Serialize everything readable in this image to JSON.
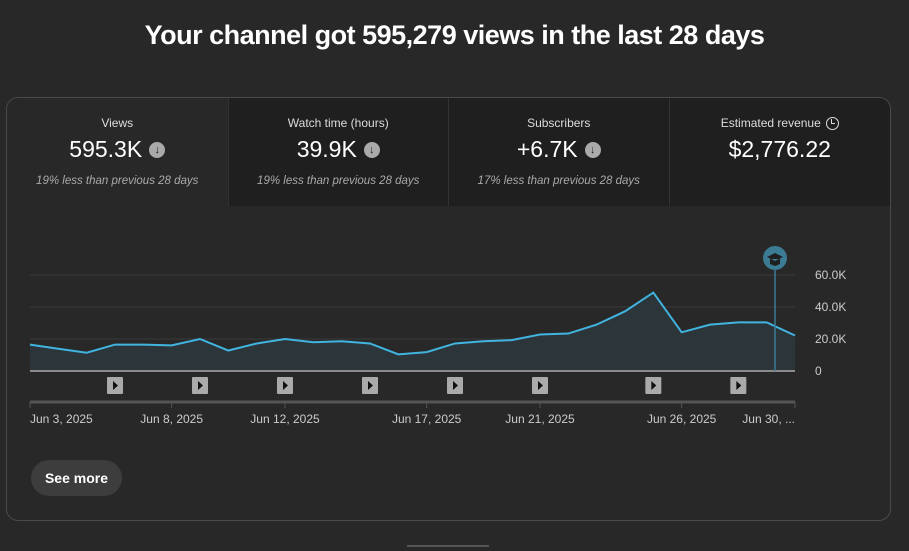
{
  "headline": "Your channel got 595,279 views in the last 28 days",
  "metrics": [
    {
      "label": "Views",
      "value": "595.3K",
      "trend": "down",
      "note": "19% less than previous 28 days"
    },
    {
      "label": "Watch time (hours)",
      "value": "39.9K",
      "trend": "down",
      "note": "19% less than previous 28 days"
    },
    {
      "label": "Subscribers",
      "value": "+6.7K",
      "trend": "down",
      "note": "17% less than previous 28 days"
    },
    {
      "label": "Estimated revenue",
      "value": "$2,776.22",
      "icon": "clock-icon"
    }
  ],
  "see_more": "See more",
  "chart_data": {
    "type": "area",
    "series": [
      {
        "values": [
          16.5,
          13.9,
          11.4,
          16.5,
          16.5,
          16,
          20,
          12.8,
          17.2,
          20,
          18,
          18.6,
          17.2,
          10.4,
          11.8,
          17.2,
          18.6,
          19.3,
          22.8,
          23.4,
          29,
          37.3,
          49,
          24.2,
          29,
          30.4,
          30.4,
          22.2
        ]
      }
    ],
    "ylim": [
      0,
      60
    ],
    "yticks": [
      "0",
      "20.0K",
      "40.0K",
      "60.0K"
    ],
    "xtick_labels": [
      {
        "i": 0,
        "label": "Jun 3, 2025"
      },
      {
        "i": 5,
        "label": "Jun 8, 2025"
      },
      {
        "i": 9,
        "label": "Jun 12, 2025"
      },
      {
        "i": 14,
        "label": "Jun 17, 2025"
      },
      {
        "i": 18,
        "label": "Jun 21, 2025"
      },
      {
        "i": 23,
        "label": "Jun 26, 2025"
      },
      {
        "i": 27,
        "label": "Jun 30, ..."
      }
    ],
    "video_markers": [
      3,
      6,
      9,
      12,
      15,
      18,
      22,
      25
    ],
    "line_color": "#41b4e0",
    "grid": true
  }
}
